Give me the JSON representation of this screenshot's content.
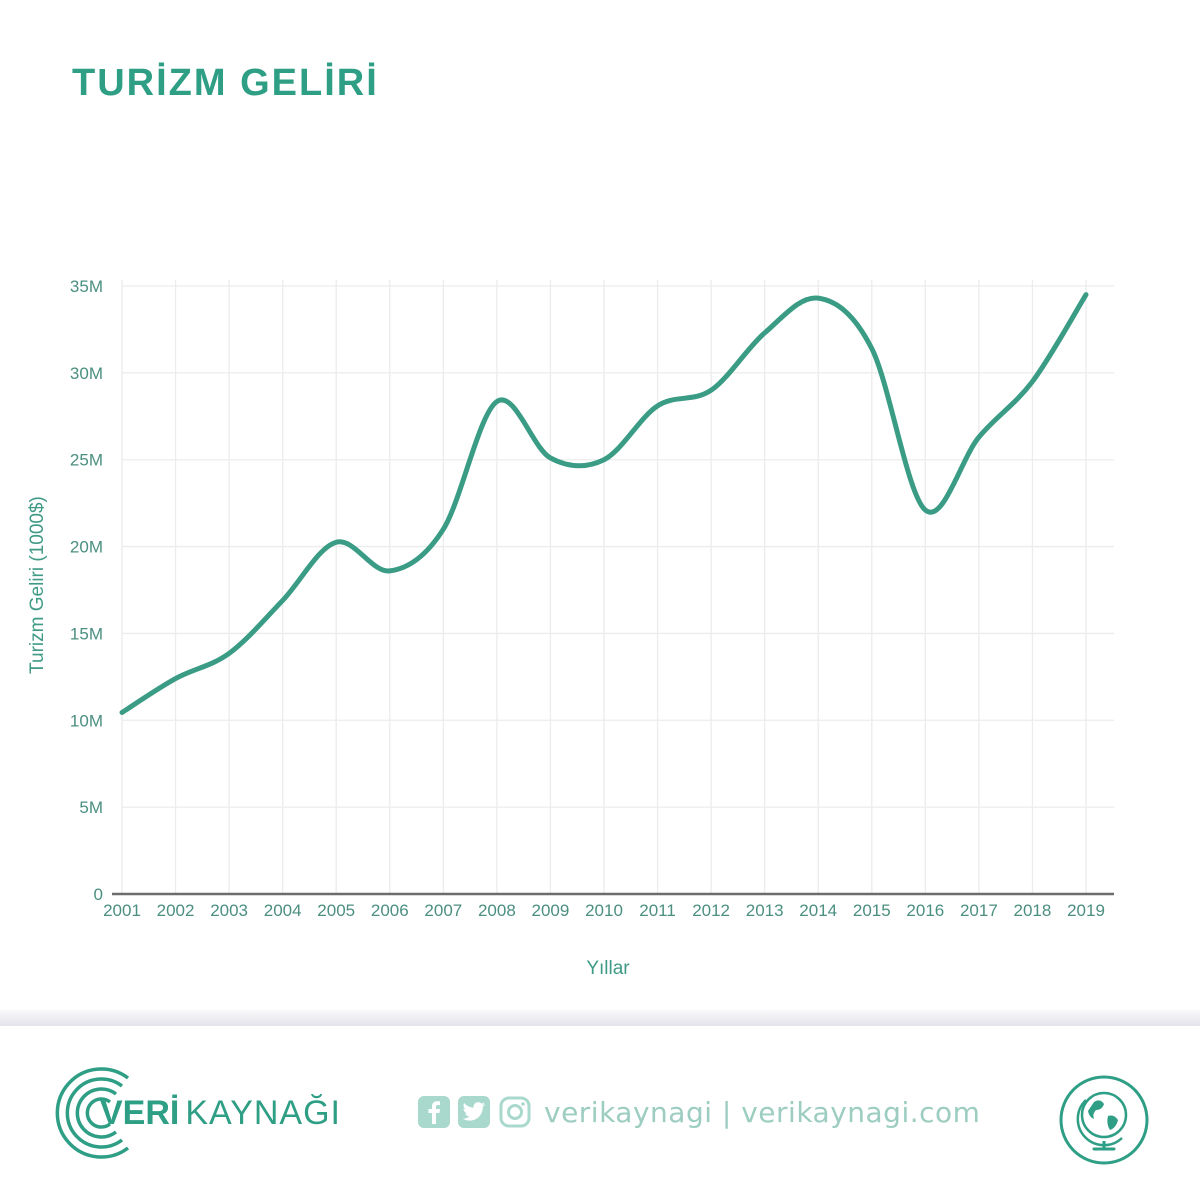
{
  "header": {
    "title": "TURİZM GELİRİ"
  },
  "chart_data": {
    "type": "line",
    "title": "TURİZM GELİRİ",
    "xlabel": "Yıllar",
    "ylabel": "Turizm Geliri (1000$)",
    "x": [
      "2001",
      "2002",
      "2003",
      "2004",
      "2005",
      "2006",
      "2007",
      "2008",
      "2009",
      "2010",
      "2011",
      "2012",
      "2013",
      "2014",
      "2015",
      "2016",
      "2017",
      "2018",
      "2019"
    ],
    "series": [
      {
        "values": [
          10.45,
          12.4,
          13.85,
          16.9,
          20.25,
          18.6,
          21.0,
          28.35,
          25.1,
          25.0,
          28.1,
          29.0,
          32.3,
          34.3,
          31.4,
          22.1,
          26.3,
          29.5,
          34.5
        ]
      }
    ],
    "ylim": [
      0,
      35
    ],
    "yticks": [
      0,
      5,
      10,
      15,
      20,
      25,
      30,
      35
    ],
    "ytick_labels": [
      "0",
      "5M",
      "10M",
      "15M",
      "20M",
      "25M",
      "30M",
      "35M"
    ],
    "grid": true,
    "colors": {
      "line": "#3a9c84",
      "text": "#4b8f80",
      "grid": "#ececec"
    }
  },
  "footer": {
    "brand_bold": "VERİ",
    "brand_light": "KAYNAĞI",
    "social_text": "verikaynagi | verikaynagi.com",
    "icons": [
      "facebook-icon",
      "twitter-icon",
      "instagram-icon",
      "globe-icon"
    ]
  }
}
